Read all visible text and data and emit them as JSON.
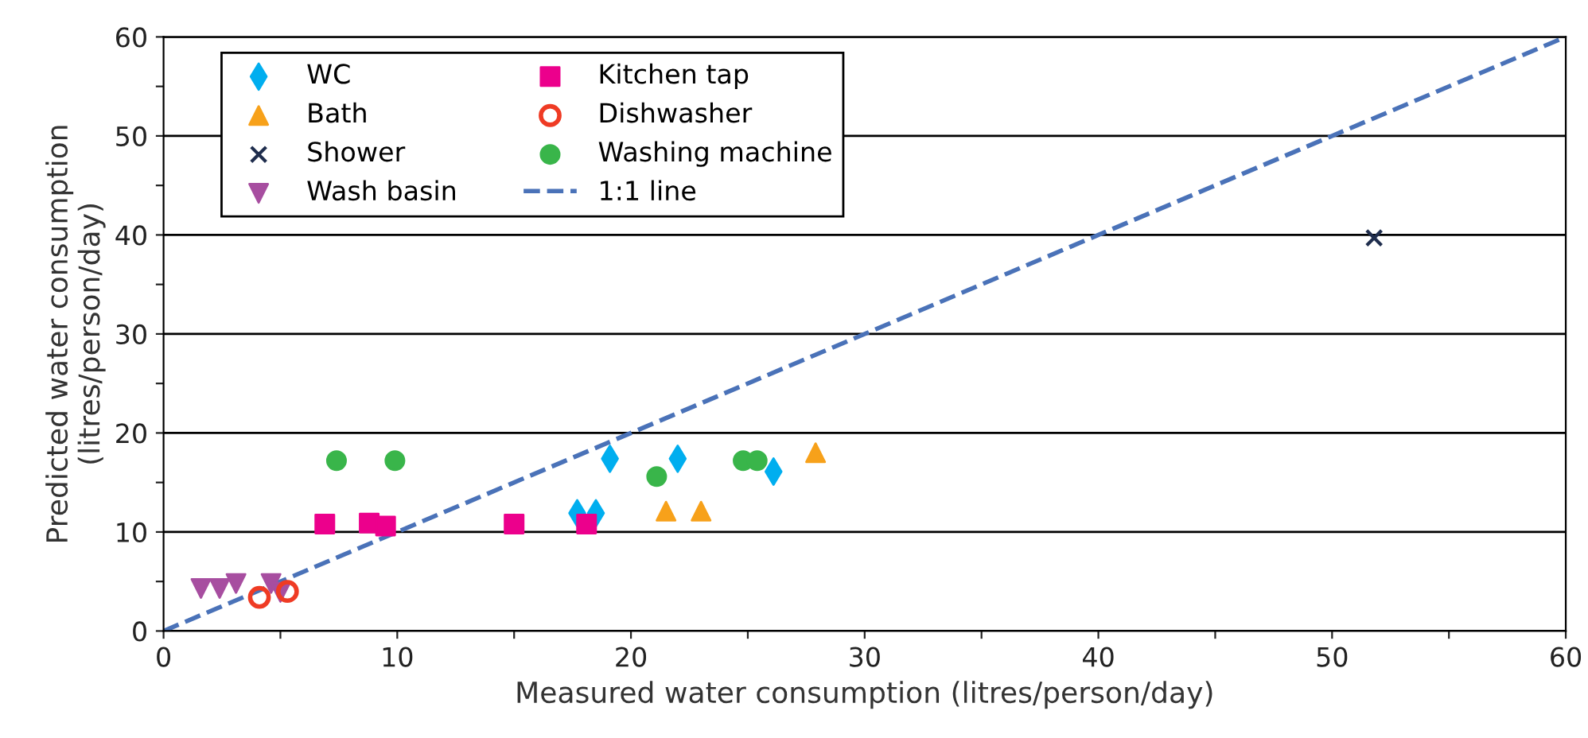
{
  "chart_data": {
    "type": "scatter",
    "xlabel": "Measured water consumption (litres/person/day)",
    "ylabel": "Predicted water consumption\n(litres/person/day)",
    "xlim": [
      0,
      60
    ],
    "ylim": [
      0,
      60
    ],
    "xticks": [
      0,
      {
        "value": 5,
        "label": null
      },
      10,
      {
        "value": 15,
        "label": null
      },
      20,
      {
        "value": 25,
        "label": null
      },
      30,
      {
        "value": 35,
        "label": null
      },
      40,
      {
        "value": 45,
        "label": null
      },
      50,
      {
        "value": 55,
        "label": null
      },
      60
    ],
    "yticks": [
      0,
      {
        "value": 5,
        "label": null
      },
      10,
      {
        "value": 15,
        "label": null
      },
      20,
      {
        "value": 25,
        "label": null
      },
      30,
      {
        "value": 35,
        "label": null
      },
      40,
      {
        "value": 45,
        "label": null
      },
      50,
      {
        "value": 55,
        "label": null
      },
      60
    ],
    "grid": "y",
    "legend": "top left",
    "series": [
      {
        "name": "WC",
        "color": "#00aeef",
        "marker": "diamond",
        "x": [
          17.7,
          18.5,
          19.1,
          22.0,
          26.1
        ],
        "values": [
          11.9,
          11.9,
          17.4,
          17.4,
          16.1
        ]
      },
      {
        "name": "Bath",
        "color": "#f7a11a",
        "marker": "triangle",
        "x": [
          21.5,
          23.0,
          27.9
        ],
        "values": [
          12.1,
          12.1,
          18.0
        ]
      },
      {
        "name": "Shower",
        "color": "#1f2d4d",
        "marker": "cross",
        "x": [
          51.8
        ],
        "values": [
          39.7
        ]
      },
      {
        "name": "Wash basin",
        "color": "#a74ea0",
        "marker": "triangle_down",
        "x": [
          1.6,
          2.4,
          3.1,
          4.6,
          5.0
        ],
        "values": [
          4.3,
          4.3,
          4.8,
          4.8,
          3.9
        ]
      },
      {
        "name": "Kitchen tap",
        "color": "#ec008c",
        "marker": "square",
        "x": [
          6.9,
          8.8,
          9.5,
          15.0,
          18.1
        ],
        "values": [
          10.8,
          10.9,
          10.6,
          10.8,
          10.8
        ]
      },
      {
        "name": "Dishwasher",
        "color": "#ef3b24",
        "marker": "circle_open",
        "x": [
          4.1,
          5.3
        ],
        "values": [
          3.4,
          4.0
        ]
      },
      {
        "name": "Washing machine",
        "color": "#39b54a",
        "marker": "circle",
        "x": [
          7.4,
          9.9,
          21.1,
          24.8,
          25.4
        ],
        "values": [
          17.2,
          17.2,
          15.6,
          17.2,
          17.2
        ]
      },
      {
        "name": "1:1 line",
        "type": "line",
        "color": "#4a72b8",
        "line_style": "dashed",
        "marker": "none",
        "x": [
          0,
          60
        ],
        "values": [
          0,
          60
        ]
      }
    ]
  }
}
